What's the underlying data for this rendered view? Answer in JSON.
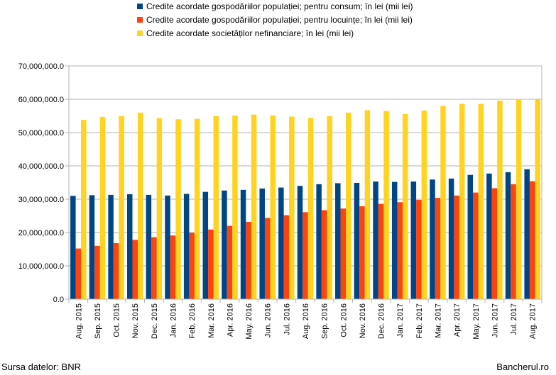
{
  "chart_data": {
    "type": "bar",
    "categories": [
      "Aug. 2015",
      "Sep. 2015",
      "Oct. 2015",
      "Nov. 2015",
      "Dec. 2015",
      "Jan. 2016",
      "Feb. 2016",
      "Mar. 2016",
      "Apr. 2016",
      "May. 2016",
      "Jun. 2016",
      "Jul. 2016",
      "Aug. 2016",
      "Sep. 2016",
      "Oct. 2016",
      "Nov. 2016",
      "Dec. 2016",
      "Jan. 2017",
      "Feb. 2017",
      "Mar. 2017",
      "Apr. 2017",
      "May. 2017",
      "Jun. 2017",
      "Jul. 2017",
      "Aug. 2017"
    ],
    "series": [
      {
        "name": "Credite acordate gospodăriilor populației; pentru consum; în lei (mii lei)",
        "color": "#004586",
        "values": [
          31000000,
          31200000,
          31300000,
          31500000,
          31300000,
          31100000,
          31600000,
          32200000,
          32600000,
          32800000,
          33200000,
          33500000,
          34000000,
          34500000,
          34800000,
          34900000,
          35300000,
          35200000,
          35300000,
          35900000,
          36200000,
          37300000,
          37700000,
          38100000,
          39000000
        ]
      },
      {
        "name": "Credite acordate gospodăriilor populației; pentru locuințe; în lei (mii lei)",
        "color": "#ff420e",
        "values": [
          15200000,
          16000000,
          16800000,
          17800000,
          18600000,
          19100000,
          19900000,
          20900000,
          22000000,
          23200000,
          24400000,
          25200000,
          26100000,
          26700000,
          27200000,
          27900000,
          28600000,
          29100000,
          29800000,
          30400000,
          31100000,
          32000000,
          33300000,
          34500000,
          35400000
        ]
      },
      {
        "name": "Credite acordate societăților nefinanciare; în lei (mii lei)",
        "color": "#ffd320",
        "values": [
          53800000,
          54700000,
          55000000,
          56000000,
          54300000,
          54000000,
          54100000,
          55000000,
          55100000,
          55400000,
          55100000,
          54800000,
          54400000,
          54900000,
          56000000,
          56700000,
          56500000,
          55600000,
          56600000,
          58000000,
          58600000,
          58600000,
          59600000,
          60000000,
          60000000
        ]
      }
    ],
    "yticks": [
      "0.0",
      "10,000,000.0",
      "20,000,000.0",
      "30,000,000.0",
      "40,000,000.0",
      "50,000,000.0",
      "60,000,000.0",
      "70,000,000.0"
    ],
    "ylim": [
      0,
      70000000
    ],
    "grid": true,
    "legend": "top-center"
  },
  "footer": {
    "source": "Sursa datelor: BNR",
    "brand": "Bancherul.ro"
  }
}
